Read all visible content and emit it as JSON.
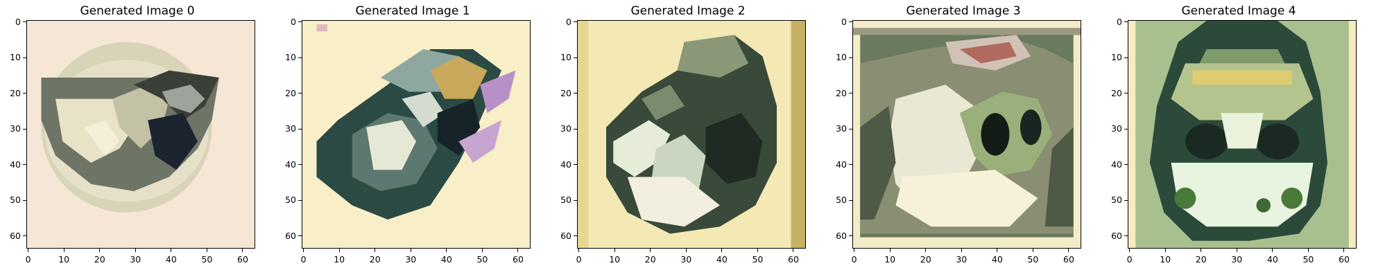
{
  "panels": [
    {
      "title": "Generated Image 0",
      "image": "pixelated-waterfall-circular-sepia"
    },
    {
      "title": "Generated Image 1",
      "image": "pixelated-waterfall-circular-teal"
    },
    {
      "title": "Generated Image 2",
      "image": "pixelated-waterfall-circular-green"
    },
    {
      "title": "Generated Image 3",
      "image": "pixelated-waterfall-landscape"
    },
    {
      "title": "Generated Image 4",
      "image": "pixelated-waterfall-green-frame"
    }
  ],
  "axes": {
    "xticks": [
      "0",
      "10",
      "20",
      "30",
      "40",
      "50",
      "60"
    ],
    "yticks": [
      "0",
      "10",
      "20",
      "30",
      "40",
      "50",
      "60"
    ],
    "xlim": [
      0,
      63
    ],
    "ylim": [
      63,
      0
    ]
  },
  "colors": {
    "sepia_bg": "#f6e8cf",
    "pale_yellow": "#f8eec4",
    "dark_green": "#2c3a2e",
    "mid_green": "#7f8f6a",
    "light_cream": "#fdf7dc",
    "frame_green": "#a7c08e"
  }
}
